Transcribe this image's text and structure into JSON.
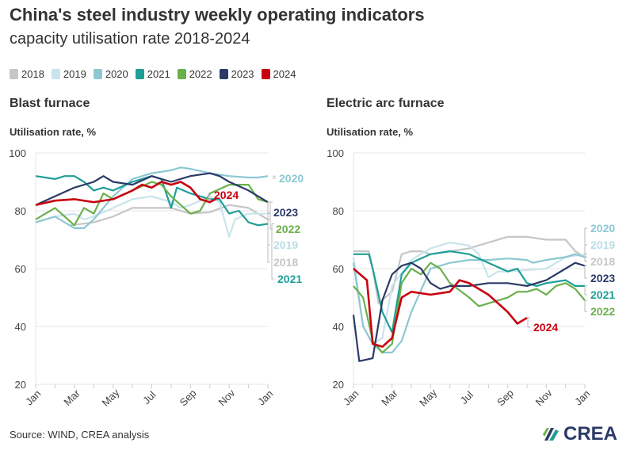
{
  "title": "China's steel industry weekly operating indicators",
  "subtitle": "capacity utilisation rate 2018-2024",
  "legend": [
    {
      "label": "2018",
      "color": "#c6c6c6"
    },
    {
      "label": "2019",
      "color": "#c9e4eb"
    },
    {
      "label": "2020",
      "color": "#8cc8d2"
    },
    {
      "label": "2021",
      "color": "#1f9e96"
    },
    {
      "label": "2022",
      "color": "#6ab04c"
    },
    {
      "label": "2023",
      "color": "#2b3a67"
    },
    {
      "label": "2024",
      "color": "#c8000f"
    }
  ],
  "source": "Source: WIND, CREA analysis",
  "logo": "CREA",
  "chart_data": [
    {
      "type": "line",
      "title": "Blast furnace",
      "ylabel": "Utilisation rate, %",
      "ylim": [
        20,
        100
      ],
      "yticks": [
        "20",
        "40",
        "60",
        "80",
        "100"
      ],
      "xticks": [
        "Jan",
        "Mar",
        "May",
        "Jul",
        "Sep",
        "Nov",
        "Jan"
      ],
      "x_unit": "month of year (0 = Jan)",
      "grid": true,
      "series": [
        {
          "name": "2018",
          "x": [
            1.8,
            3,
            4,
            5,
            6,
            7,
            8,
            9,
            10,
            11,
            12
          ],
          "y": [
            75,
            76,
            78,
            81,
            81,
            81,
            79,
            79.5,
            82,
            81,
            77
          ]
        },
        {
          "name": "2019",
          "x": [
            0,
            1,
            2,
            2.5,
            3,
            4,
            5,
            6,
            7,
            7.5,
            8,
            9,
            9.5,
            10,
            10.3,
            11,
            12
          ],
          "y": [
            76,
            78,
            79,
            77,
            78,
            81,
            84,
            85,
            83,
            81,
            82,
            85,
            83,
            71,
            77,
            79,
            79
          ]
        },
        {
          "name": "2020",
          "x": [
            0,
            1,
            2,
            2.5,
            3,
            4,
            5,
            6,
            7,
            7.5,
            8,
            9,
            10,
            11,
            11.5,
            12
          ],
          "y": [
            76,
            78,
            74,
            74,
            77,
            85,
            91,
            93,
            94,
            95,
            94.5,
            93,
            92,
            91.5,
            91.5,
            92
          ]
        },
        {
          "name": "2021",
          "x": [
            0,
            1,
            1.5,
            2,
            2.5,
            3,
            3.5,
            4,
            5,
            6,
            6.5,
            7,
            7.3,
            8,
            9,
            9.5,
            10,
            10.5,
            11,
            11.5,
            12
          ],
          "y": [
            92,
            91,
            92,
            92,
            90,
            87,
            88,
            87,
            90,
            92,
            91,
            81,
            88,
            86,
            84,
            84,
            79,
            80,
            76,
            75,
            75.5
          ]
        },
        {
          "name": "2022",
          "x": [
            0,
            1,
            1.5,
            2,
            2.5,
            3,
            3.5,
            4,
            5,
            6,
            6.5,
            7,
            8,
            8.5,
            9,
            10,
            11,
            11.5,
            12
          ],
          "y": [
            77,
            81,
            78,
            75,
            81,
            79,
            86,
            84,
            87,
            90,
            89,
            85,
            79,
            80,
            86,
            89,
            89,
            84,
            83
          ]
        },
        {
          "name": "2023",
          "x": [
            0,
            1,
            2,
            3,
            3.5,
            4,
            5,
            6,
            6.5,
            7,
            8,
            9,
            9.5,
            10,
            11,
            11.5,
            12
          ],
          "y": [
            82,
            85,
            88,
            90,
            92,
            90,
            89,
            92,
            91,
            90,
            92,
            93,
            92,
            90,
            87,
            85,
            83
          ]
        },
        {
          "name": "2024",
          "x": [
            0,
            1,
            2,
            3,
            4,
            5,
            5.5,
            6,
            6.5,
            7,
            7.5,
            8,
            8.5,
            9,
            9.3
          ],
          "y": [
            82,
            83.5,
            84,
            83,
            84,
            87,
            89,
            88,
            90,
            89,
            90,
            88,
            84,
            83,
            84
          ]
        }
      ]
    },
    {
      "type": "line",
      "title": "Electric arc furnace",
      "ylabel": "Utilisation rate, %",
      "ylim": [
        20,
        100
      ],
      "yticks": [
        "20",
        "40",
        "60",
        "80",
        "100"
      ],
      "xticks": [
        "Jan",
        "Mar",
        "May",
        "Jul",
        "Sep",
        "Nov",
        "Jan"
      ],
      "x_unit": "month of year (0 = Jan)",
      "grid": true,
      "series": [
        {
          "name": "2018",
          "x": [
            0,
            0.8,
            1,
            1.3,
            2,
            2.5,
            3,
            3.5,
            4,
            5,
            6,
            7,
            8,
            9,
            10,
            11,
            11.5,
            12
          ],
          "y": [
            66,
            66,
            60,
            48,
            52,
            65,
            66,
            66,
            65,
            66,
            67,
            69,
            71,
            71,
            70,
            70,
            66,
            64
          ]
        },
        {
          "name": "2019",
          "x": [
            0,
            0.5,
            1,
            1.5,
            2,
            3,
            4,
            5,
            6,
            6.5,
            7,
            7.5,
            8,
            9,
            10,
            11,
            12
          ],
          "y": [
            64,
            40,
            34,
            36,
            54,
            63,
            67,
            69,
            68,
            65,
            57,
            59,
            59,
            59.5,
            60,
            64,
            65
          ]
        },
        {
          "name": "2020",
          "x": [
            0,
            0.5,
            1,
            1.5,
            2,
            2.5,
            3,
            4,
            5,
            6,
            7,
            8,
            9,
            9.3,
            10,
            11,
            11.5,
            12
          ],
          "y": [
            62,
            40,
            34,
            31,
            31,
            35,
            45,
            60,
            62,
            63,
            63,
            63.5,
            63,
            62,
            63,
            64,
            65,
            64
          ]
        },
        {
          "name": "2021",
          "x": [
            0,
            0.8,
            1,
            1.5,
            2,
            2.5,
            3,
            4,
            5,
            6,
            7,
            8,
            8.5,
            9,
            9.5,
            10,
            11,
            11.5,
            12
          ],
          "y": [
            65,
            65,
            60,
            45,
            38,
            58,
            62,
            65,
            66,
            65,
            62,
            59,
            60,
            55,
            54,
            55,
            56,
            54,
            54
          ]
        },
        {
          "name": "2022",
          "x": [
            0,
            0.5,
            1,
            1.5,
            2,
            2.5,
            3,
            3.5,
            4,
            4.5,
            5,
            6,
            6.5,
            7,
            8,
            8.5,
            9,
            9.5,
            10,
            10.5,
            11,
            11.5,
            12
          ],
          "y": [
            54,
            50,
            35,
            31,
            34,
            55,
            60,
            58,
            62,
            60,
            55,
            50,
            47,
            48,
            50,
            52,
            52,
            53,
            51,
            54,
            55,
            53,
            49
          ]
        },
        {
          "name": "2023",
          "x": [
            0,
            0.3,
            1,
            1.5,
            2,
            2.5,
            3,
            3.5,
            4,
            4.5,
            5,
            6,
            7,
            8,
            9,
            10,
            11,
            11.5,
            12
          ],
          "y": [
            44,
            28,
            29,
            49,
            58,
            61,
            62,
            60,
            55,
            53,
            54,
            54,
            55,
            55,
            54,
            56,
            60,
            62,
            61
          ]
        },
        {
          "name": "2024",
          "x": [
            0,
            0.7,
            1,
            1.5,
            2,
            2.5,
            3,
            4,
            5,
            5.5,
            6,
            6.5,
            7,
            7.5,
            8,
            8.5,
            9
          ],
          "y": [
            60,
            56,
            34,
            33,
            36,
            50,
            52,
            51,
            52,
            56,
            55,
            53,
            51,
            48,
            45,
            41,
            43
          ]
        }
      ]
    }
  ]
}
